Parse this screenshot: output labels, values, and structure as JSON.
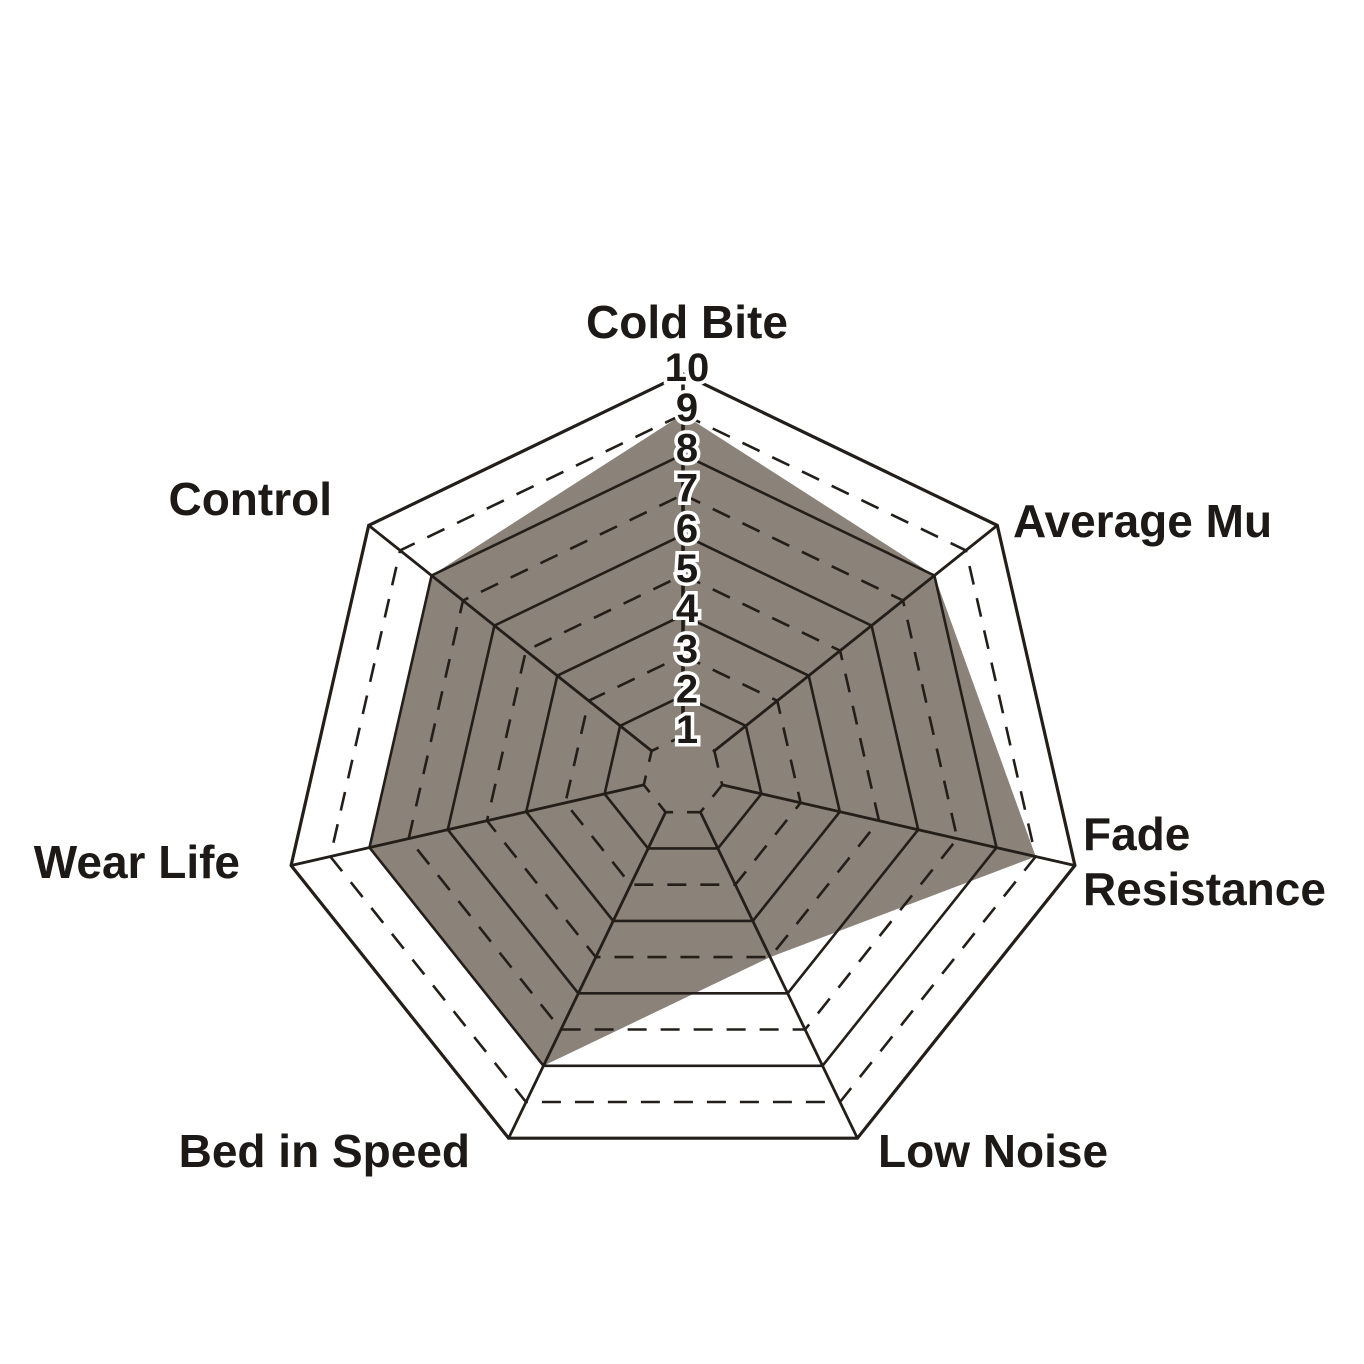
{
  "chart_data": {
    "type": "radar",
    "categories": [
      "Cold Bite",
      "Average Mu",
      "Fade Resistance",
      "Low Noise",
      "Bed in Speed",
      "Wear Life",
      "Control"
    ],
    "values": [
      9,
      8,
      9,
      5,
      8,
      8,
      8
    ],
    "axis_ticks": [
      "1",
      "2",
      "3",
      "4",
      "5",
      "6",
      "7",
      "8",
      "9",
      "10"
    ],
    "scale_min": 0,
    "scale_max": 10,
    "grid": {
      "rings": 10,
      "even_rings": "solid",
      "odd_rings": "dashed",
      "spokes_from_ring": 1,
      "legend": "none"
    },
    "colors": {
      "fill": "#8b8279",
      "grid_line": "#231e19",
      "text": "#1d1916",
      "background": "#ffffff"
    }
  }
}
